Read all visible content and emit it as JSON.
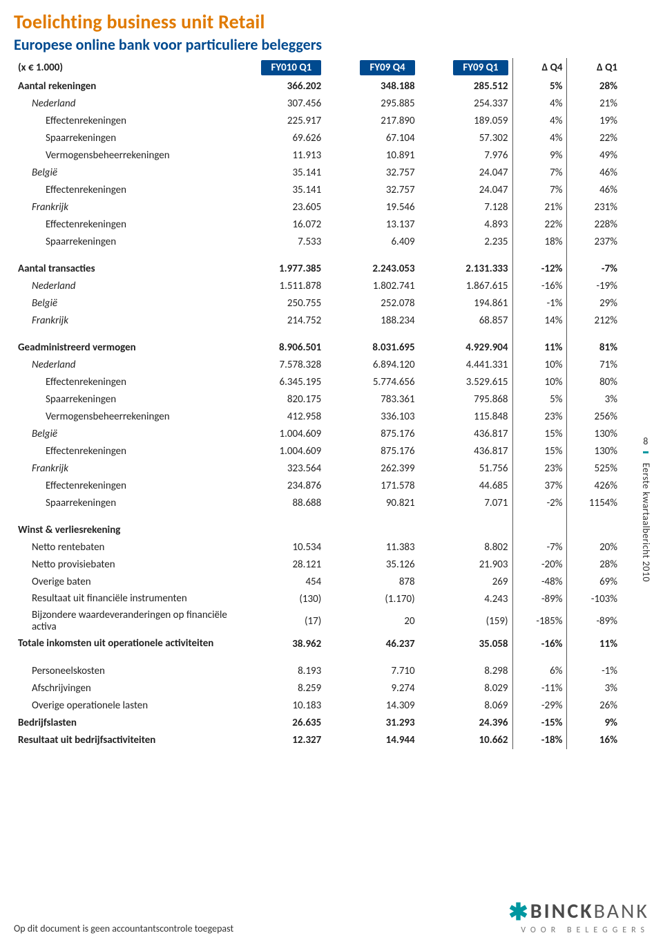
{
  "colors": {
    "title": "#e07a00",
    "subtitle": "#004a8f",
    "pill": "#004a8f",
    "accent": "#0097a0"
  },
  "title": "Toelichting business unit Retail",
  "subtitle": "Europese online bank voor particuliere beleggers",
  "unit_label": "(x € 1.000)",
  "columns": {
    "c1": "FY010 Q1",
    "c2": "FY09 Q4",
    "c3": "FY09 Q1",
    "d1": "Δ Q4",
    "d2": "Δ Q1"
  },
  "sections": [
    {
      "rows": [
        {
          "label": "Aantal rekeningen",
          "indent": 0,
          "bold": true,
          "v": [
            "366.202",
            "348.188",
            "285.512"
          ],
          "d": [
            "5%",
            "28%"
          ]
        },
        {
          "label": "Nederland",
          "indent": 1,
          "v": [
            "307.456",
            "295.885",
            "254.337"
          ],
          "d": [
            "4%",
            "21%"
          ]
        },
        {
          "label": "Effectenrekeningen",
          "indent": 2,
          "v": [
            "225.917",
            "217.890",
            "189.059"
          ],
          "d": [
            "4%",
            "19%"
          ]
        },
        {
          "label": "Spaarrekeningen",
          "indent": 2,
          "v": [
            "69.626",
            "67.104",
            "57.302"
          ],
          "d": [
            "4%",
            "22%"
          ]
        },
        {
          "label": "Vermogensbeheerrekeningen",
          "indent": 2,
          "v": [
            "11.913",
            "10.891",
            "7.976"
          ],
          "d": [
            "9%",
            "49%"
          ]
        },
        {
          "label": "België",
          "indent": 1,
          "v": [
            "35.141",
            "32.757",
            "24.047"
          ],
          "d": [
            "7%",
            "46%"
          ]
        },
        {
          "label": "Effectenrekeningen",
          "indent": 2,
          "v": [
            "35.141",
            "32.757",
            "24.047"
          ],
          "d": [
            "7%",
            "46%"
          ]
        },
        {
          "label": "Frankrijk",
          "indent": 1,
          "v": [
            "23.605",
            "19.546",
            "7.128"
          ],
          "d": [
            "21%",
            "231%"
          ]
        },
        {
          "label": "Effectenrekeningen",
          "indent": 2,
          "v": [
            "16.072",
            "13.137",
            "4.893"
          ],
          "d": [
            "22%",
            "228%"
          ]
        },
        {
          "label": "Spaarrekeningen",
          "indent": 2,
          "v": [
            "7.533",
            "6.409",
            "2.235"
          ],
          "d": [
            "18%",
            "237%"
          ]
        }
      ]
    },
    {
      "rows": [
        {
          "label": "Aantal transacties",
          "indent": 0,
          "bold": true,
          "v": [
            "1.977.385",
            "2.243.053",
            "2.131.333"
          ],
          "d": [
            "-12%",
            "-7%"
          ]
        },
        {
          "label": "Nederland",
          "indent": 1,
          "v": [
            "1.511.878",
            "1.802.741",
            "1.867.615"
          ],
          "d": [
            "-16%",
            "-19%"
          ]
        },
        {
          "label": "België",
          "indent": 1,
          "v": [
            "250.755",
            "252.078",
            "194.861"
          ],
          "d": [
            "-1%",
            "29%"
          ]
        },
        {
          "label": "Frankrijk",
          "indent": 1,
          "v": [
            "214.752",
            "188.234",
            "68.857"
          ],
          "d": [
            "14%",
            "212%"
          ]
        }
      ]
    },
    {
      "rows": [
        {
          "label": "Geadministreerd vermogen",
          "indent": 0,
          "bold": true,
          "v": [
            "8.906.501",
            "8.031.695",
            "4.929.904"
          ],
          "d": [
            "11%",
            "81%"
          ]
        },
        {
          "label": "Nederland",
          "indent": 1,
          "v": [
            "7.578.328",
            "6.894.120",
            "4.441.331"
          ],
          "d": [
            "10%",
            "71%"
          ]
        },
        {
          "label": "Effectenrekeningen",
          "indent": 2,
          "v": [
            "6.345.195",
            "5.774.656",
            "3.529.615"
          ],
          "d": [
            "10%",
            "80%"
          ]
        },
        {
          "label": "Spaarrekeningen",
          "indent": 2,
          "v": [
            "820.175",
            "783.361",
            "795.868"
          ],
          "d": [
            "5%",
            "3%"
          ]
        },
        {
          "label": "Vermogensbeheerrekeningen",
          "indent": 2,
          "v": [
            "412.958",
            "336.103",
            "115.848"
          ],
          "d": [
            "23%",
            "256%"
          ]
        },
        {
          "label": "België",
          "indent": 1,
          "v": [
            "1.004.609",
            "875.176",
            "436.817"
          ],
          "d": [
            "15%",
            "130%"
          ]
        },
        {
          "label": "Effectenrekeningen",
          "indent": 2,
          "v": [
            "1.004.609",
            "875.176",
            "436.817"
          ],
          "d": [
            "15%",
            "130%"
          ]
        },
        {
          "label": "Frankrijk",
          "indent": 1,
          "v": [
            "323.564",
            "262.399",
            "51.756"
          ],
          "d": [
            "23%",
            "525%"
          ]
        },
        {
          "label": "Effectenrekeningen",
          "indent": 2,
          "v": [
            "234.876",
            "171.578",
            "44.685"
          ],
          "d": [
            "37%",
            "426%"
          ]
        },
        {
          "label": "Spaarrekeningen",
          "indent": 2,
          "v": [
            "88.688",
            "90.821",
            "7.071"
          ],
          "d": [
            "-2%",
            "1154%"
          ]
        }
      ]
    },
    {
      "rows": [
        {
          "label": "Winst & verliesrekening",
          "indent": 0,
          "bold": true,
          "v": [
            "",
            "",
            ""
          ],
          "d": [
            "",
            ""
          ]
        },
        {
          "label": "Netto rentebaten",
          "indent": 1,
          "nostyle": true,
          "v": [
            "10.534",
            "11.383",
            "8.802"
          ],
          "d": [
            "-7%",
            "20%"
          ]
        },
        {
          "label": "Netto provisiebaten",
          "indent": 1,
          "nostyle": true,
          "v": [
            "28.121",
            "35.126",
            "21.903"
          ],
          "d": [
            "-20%",
            "28%"
          ]
        },
        {
          "label": "Overige baten",
          "indent": 1,
          "nostyle": true,
          "v": [
            "454",
            "878",
            "269"
          ],
          "d": [
            "-48%",
            "69%"
          ]
        },
        {
          "label": "Resultaat uit financiële instrumenten",
          "indent": 1,
          "nostyle": true,
          "wrap": true,
          "v": [
            "(130)",
            "(1.170)",
            "4.243"
          ],
          "d": [
            "-89%",
            "-103%"
          ]
        },
        {
          "label": "Bijzondere waardeveranderingen op financiële activa",
          "indent": 1,
          "nostyle": true,
          "wrap": true,
          "v": [
            "(17)",
            "20",
            "(159)"
          ],
          "d": [
            "-185%",
            "-89%"
          ]
        },
        {
          "label": "Totale inkomsten uit operationele activiteiten",
          "indent": 0,
          "bold": true,
          "wrap": true,
          "v": [
            "38.962",
            "46.237",
            "35.058"
          ],
          "d": [
            "-16%",
            "11%"
          ]
        }
      ]
    },
    {
      "rows": [
        {
          "label": "Personeelskosten",
          "indent": 1,
          "nostyle": true,
          "v": [
            "8.193",
            "7.710",
            "8.298"
          ],
          "d": [
            "6%",
            "-1%"
          ]
        },
        {
          "label": "Afschrijvingen",
          "indent": 1,
          "nostyle": true,
          "v": [
            "8.259",
            "9.274",
            "8.029"
          ],
          "d": [
            "-11%",
            "3%"
          ]
        },
        {
          "label": "Overige operationele lasten",
          "indent": 1,
          "nostyle": true,
          "v": [
            "10.183",
            "14.309",
            "8.069"
          ],
          "d": [
            "-29%",
            "26%"
          ]
        },
        {
          "label": "Bedrijfslasten",
          "indent": 0,
          "bold": true,
          "v": [
            "26.635",
            "31.293",
            "24.396"
          ],
          "d": [
            "-15%",
            "9%"
          ]
        },
        {
          "label": "Resultaat uit bedrijfsactiviteiten",
          "indent": 0,
          "bold": true,
          "v": [
            "12.327",
            "14.944",
            "10.662"
          ],
          "d": [
            "-18%",
            "16%"
          ]
        }
      ]
    }
  ],
  "side": {
    "page": "8",
    "text": "Eerste kwartaalbericht 2010"
  },
  "footer_note": "Op dit document is geen accountantscontrole toegepast",
  "logo": {
    "star": "✱",
    "brand1": "BINCK",
    "brand2": "BANK",
    "sub": "VOOR BELEGGERS"
  }
}
